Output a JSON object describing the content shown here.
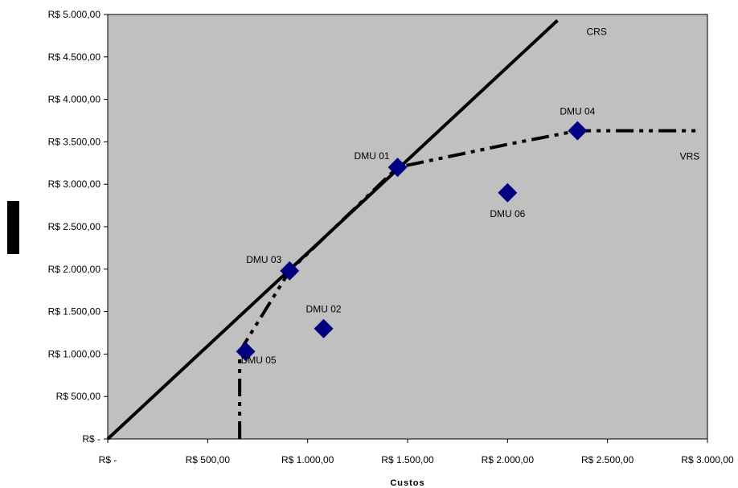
{
  "chart_data": {
    "type": "scatter",
    "title": "",
    "xlabel": "Custos",
    "ylabel": "",
    "xlim": [
      0,
      3000
    ],
    "ylim": [
      0,
      5000
    ],
    "grid": false,
    "background_color": "#c0c0c0",
    "marker_color": "#000080",
    "line_color": "#000000",
    "x_ticks": [
      0,
      500,
      1000,
      1500,
      2000,
      2500,
      3000
    ],
    "x_tick_labels": [
      "R$ -",
      "R$ 500,00",
      "R$ 1.000,00",
      "R$ 1.500,00",
      "R$ 2.000,00",
      "R$ 2.500,00",
      "R$ 3.000,00"
    ],
    "y_ticks": [
      0,
      500,
      1000,
      1500,
      2000,
      2500,
      3000,
      3500,
      4000,
      4500,
      5000
    ],
    "y_tick_labels": [
      "R$ -",
      "R$ 500,00",
      "R$ 1.000,00",
      "R$ 1.500,00",
      "R$ 2.000,00",
      "R$ 2.500,00",
      "R$ 3.000,00",
      "R$ 3.500,00",
      "R$ 4.000,00",
      "R$ 4.500,00",
      "R$ 5.000,00"
    ],
    "points": [
      {
        "label": "DMU 01",
        "x": 1450,
        "y": 3200,
        "label_pos": "left"
      },
      {
        "label": "DMU 02",
        "x": 1080,
        "y": 1300,
        "label_pos": "above"
      },
      {
        "label": "DMU 03",
        "x": 910,
        "y": 1980,
        "label_pos": "left"
      },
      {
        "label": "DMU 04",
        "x": 2350,
        "y": 3630,
        "label_pos": "above"
      },
      {
        "label": "DMU 05",
        "x": 690,
        "y": 1030,
        "label_pos": "right"
      },
      {
        "label": "DMU 06",
        "x": 2000,
        "y": 2900,
        "label_pos": "below"
      }
    ],
    "frontiers": [
      {
        "name": "CRS",
        "style": "solid",
        "points": [
          [
            0,
            0
          ],
          [
            2250,
            4930
          ]
        ]
      },
      {
        "name": "VRS",
        "style": "dash-dot-dot",
        "points": [
          [
            660,
            0
          ],
          [
            660,
            1030
          ],
          [
            910,
            1980
          ],
          [
            1450,
            3200
          ],
          [
            2000,
            3470
          ],
          [
            2350,
            3630
          ],
          [
            2950,
            3630
          ]
        ]
      }
    ]
  }
}
